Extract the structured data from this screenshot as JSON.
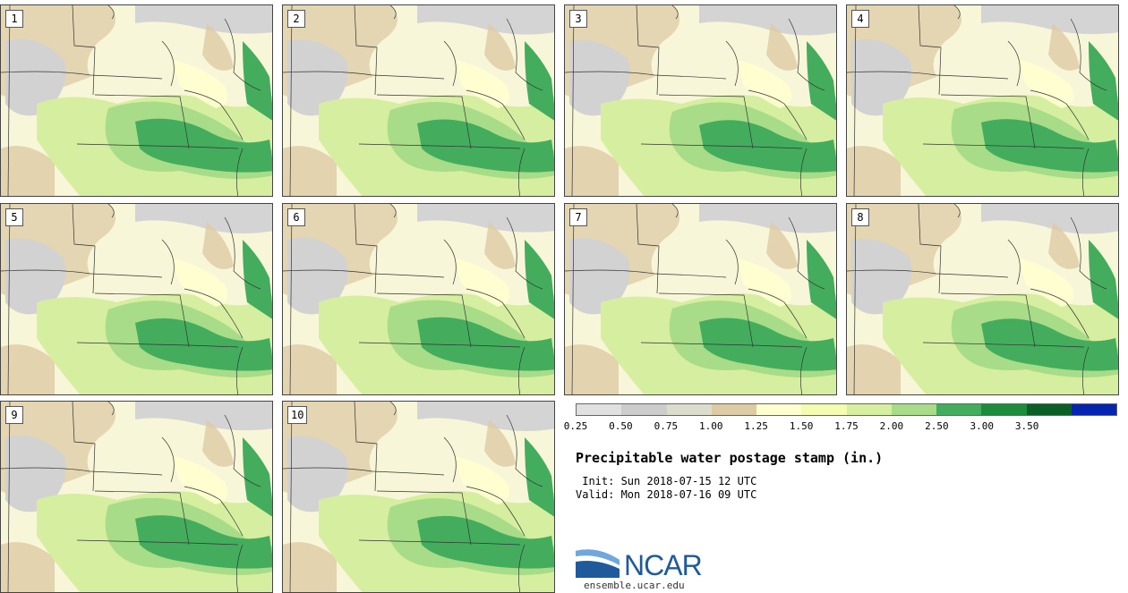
{
  "panels": [
    {
      "number": "1"
    },
    {
      "number": "2"
    },
    {
      "number": "3"
    },
    {
      "number": "4"
    },
    {
      "number": "5"
    },
    {
      "number": "6"
    },
    {
      "number": "7"
    },
    {
      "number": "8"
    },
    {
      "number": "9"
    },
    {
      "number": "10"
    }
  ],
  "colorbar": {
    "ticks": [
      "0.25",
      "0.50",
      "0.75",
      "1.00",
      "1.25",
      "1.50",
      "1.75",
      "2.00",
      "2.50",
      "3.00",
      "3.50"
    ],
    "colors": [
      "#e0e0e0",
      "#cccccc",
      "#dcdccc",
      "#ddcba5",
      "#ffffd0",
      "#f3fcb0",
      "#d6eea0",
      "#a8dc88",
      "#43ad5d",
      "#1d8c3c",
      "#0b5e26",
      "#0524b0"
    ]
  },
  "title": "Precipitable water postage stamp (in.)",
  "init_line": " Init: Sun 2018-07-15 12 UTC",
  "valid_line": "Valid: Mon 2018-07-16 09 UTC",
  "logo": {
    "text": "NCAR",
    "site": "ensemble.ucar.edu"
  }
}
